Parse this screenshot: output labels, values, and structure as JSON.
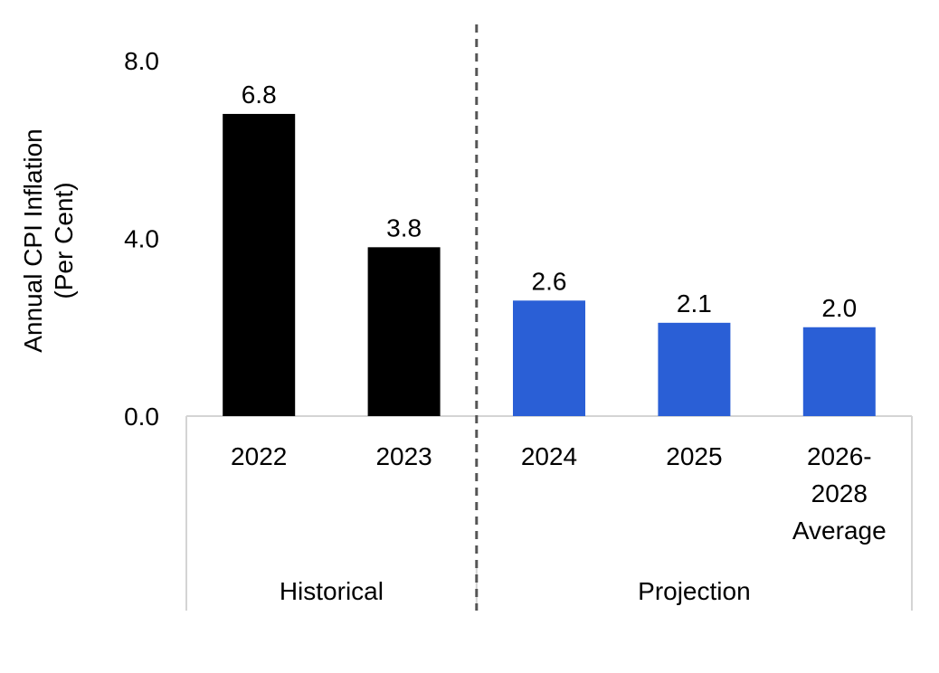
{
  "chart_data": {
    "type": "bar",
    "categories": [
      "2022",
      "2023",
      "2024",
      "2025",
      "2026-2028 Average"
    ],
    "category_lines": [
      [
        "2022"
      ],
      [
        "2023"
      ],
      [
        "2024"
      ],
      [
        "2025"
      ],
      [
        "2026-",
        "2028",
        "Average"
      ]
    ],
    "values": [
      6.8,
      3.8,
      2.6,
      2.1,
      2.0
    ],
    "data_labels": [
      "6.8",
      "3.8",
      "2.6",
      "2.1",
      "2.0"
    ],
    "groups": [
      {
        "label": "Historical",
        "categories": [
          "2022",
          "2023"
        ],
        "color": "#000000"
      },
      {
        "label": "Projection",
        "categories": [
          "2024",
          "2025",
          "2026-2028 Average"
        ],
        "color": "#2a5fd6"
      }
    ],
    "ylabel": "Annual CPI Inflation (Per Cent)",
    "ylabel_lines": [
      "Annual CPI Inflation",
      "(Per Cent)"
    ],
    "yticks": [
      "0.0",
      "4.0",
      "8.0"
    ],
    "ylim": [
      0,
      8
    ],
    "grid": false,
    "divider": "dashed line between Historical and Projection"
  }
}
